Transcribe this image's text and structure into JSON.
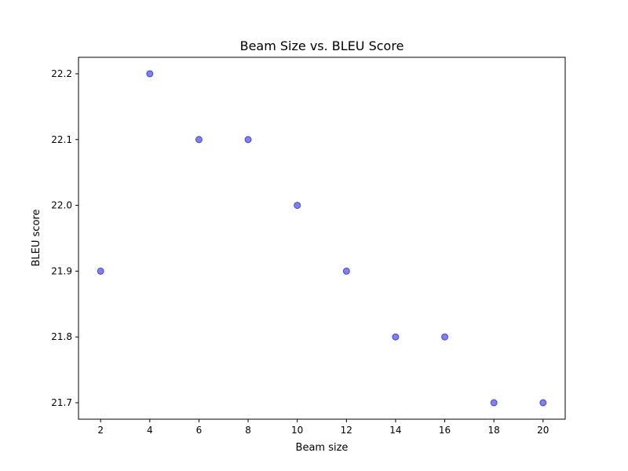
{
  "chart_data": {
    "type": "scatter",
    "title": "Beam Size vs. BLEU Score",
    "xlabel": "Beam size",
    "ylabel": "BLEU score",
    "x": [
      2,
      4,
      6,
      8,
      10,
      12,
      14,
      16,
      18,
      20
    ],
    "y": [
      21.9,
      22.2,
      22.1,
      22.1,
      22.0,
      21.9,
      21.8,
      21.8,
      21.7,
      21.7
    ],
    "xlim": [
      1.1,
      20.9
    ],
    "ylim": [
      21.675,
      22.225
    ],
    "xticks": [
      2,
      4,
      6,
      8,
      10,
      12,
      14,
      16,
      18,
      20
    ],
    "xtick_labels": [
      "2",
      "4",
      "6",
      "8",
      "10",
      "12",
      "14",
      "16",
      "18",
      "20"
    ],
    "yticks": [
      21.7,
      21.8,
      21.9,
      22.0,
      22.1,
      22.2
    ],
    "ytick_labels": [
      "21.7",
      "21.8",
      "21.9",
      "22.0",
      "22.1",
      "22.2"
    ],
    "grid": false,
    "marker_color": "#0000ff",
    "marker_alpha": 0.5,
    "edge_color": "#00008b"
  }
}
